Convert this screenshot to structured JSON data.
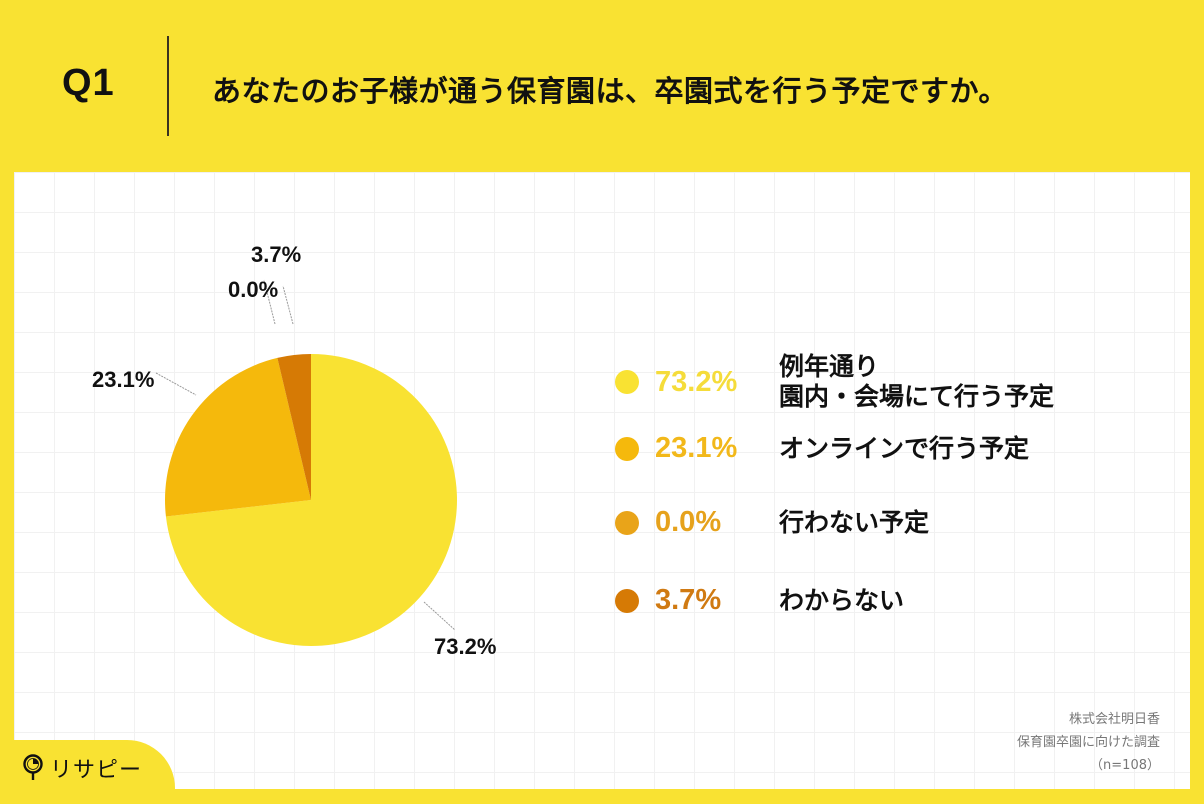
{
  "header": {
    "question_number": "Q1",
    "question_text": "あなたのお子様が通う保育園は、卒園式を行う予定ですか。"
  },
  "chart_data": {
    "type": "pie",
    "title": "あなたのお子様が通う保育園は、卒園式を行う予定ですか。",
    "categories": [
      "例年通り 園内・会場にて行う予定",
      "オンラインで行う予定",
      "行わない予定",
      "わからない"
    ],
    "values": [
      73.2,
      23.1,
      0.0,
      3.7
    ],
    "colors": [
      "#f9e232",
      "#f5b90c",
      "#e9a419",
      "#d67a05"
    ],
    "start_angle": "12 o'clock, clockwise",
    "legend_position": "right",
    "sample_size": 108
  },
  "pie_labels": {
    "slice0": "73.2%",
    "slice1": "23.1%",
    "slice2": "0.0%",
    "slice3": "3.7%"
  },
  "legend": {
    "items": [
      {
        "pct": "73.2%",
        "line1": "例年通り",
        "line2": "園内・会場にて行う予定",
        "color": "#f9e232",
        "pct_color": "#f5dc3a"
      },
      {
        "pct": "23.1%",
        "line1": "オンラインで行う予定",
        "color": "#f5b90c",
        "pct_color": "#f2b81a"
      },
      {
        "pct": "0.0%",
        "line1": "行わない予定",
        "color": "#e9a419",
        "pct_color": "#e6a21c"
      },
      {
        "pct": "3.7%",
        "line1": "わからない",
        "color": "#d67a05",
        "pct_color": "#d07a12"
      }
    ]
  },
  "source": {
    "line1": "株式会社明日香",
    "line2": "保育園卒園に向けた調査",
    "line3": "（n=108）"
  },
  "logo": {
    "text": "リサピー"
  }
}
